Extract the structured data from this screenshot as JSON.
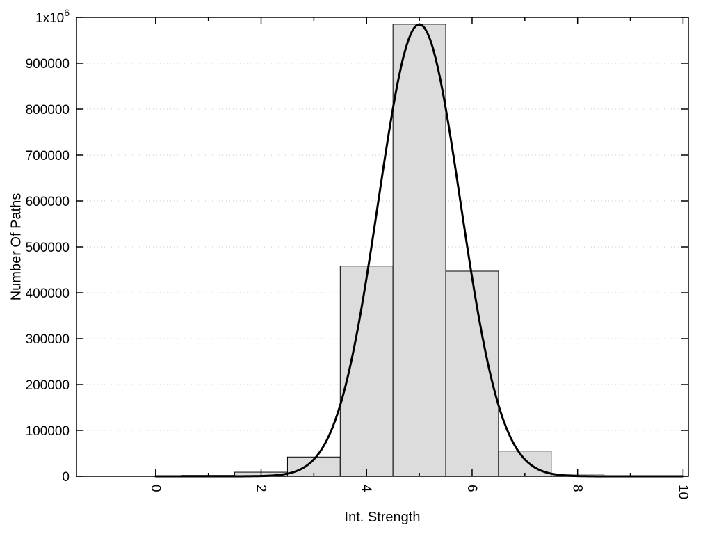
{
  "figure": {
    "background": "#ffffff"
  },
  "chart_data": {
    "type": "bar",
    "subtype": "histogram_with_gaussian_fit",
    "title": "",
    "xlabel": "Int. Strength",
    "ylabel": "Number Of Paths",
    "xlim": [
      -1.5,
      10.1
    ],
    "ylim": [
      0,
      1000000
    ],
    "grid": "horizontal-dotted",
    "legend": "none",
    "bar_width": 1,
    "categories": [
      0,
      1,
      2,
      3,
      4,
      5,
      6,
      7,
      8,
      9,
      10
    ],
    "values": [
      500,
      2000,
      9000,
      42000,
      458000,
      985000,
      447000,
      55000,
      5000,
      1000,
      0
    ],
    "fit_curve": {
      "shape": "gaussian",
      "amplitude": 985000,
      "mean": 5,
      "sigma": 0.78,
      "x_start": 0,
      "x_end": 10
    },
    "x_ticks": {
      "major": [
        0,
        2,
        4,
        6,
        8,
        10
      ],
      "labels": [
        "0",
        "2",
        "4",
        "6",
        "8",
        "10"
      ],
      "minor": [
        1,
        3,
        5,
        7,
        9
      ],
      "label_rotation_deg": 90
    },
    "y_ticks": [
      {
        "v": 0,
        "label": "0"
      },
      {
        "v": 100000,
        "label": "100000"
      },
      {
        "v": 200000,
        "label": "200000"
      },
      {
        "v": 300000,
        "label": "300000"
      },
      {
        "v": 400000,
        "label": "400000"
      },
      {
        "v": 500000,
        "label": "500000"
      },
      {
        "v": 600000,
        "label": "600000"
      },
      {
        "v": 700000,
        "label": "700000"
      },
      {
        "v": 800000,
        "label": "800000"
      },
      {
        "v": 900000,
        "label": "900000"
      },
      {
        "v": 1000000,
        "label": "1x10",
        "sup": "6"
      }
    ],
    "colors": {
      "bar_fill": "#dcdcdc",
      "bar_stroke": "#000000",
      "curve": "#000000",
      "grid": "#c9c9c9",
      "axis": "#000000",
      "text": "#000000"
    }
  }
}
